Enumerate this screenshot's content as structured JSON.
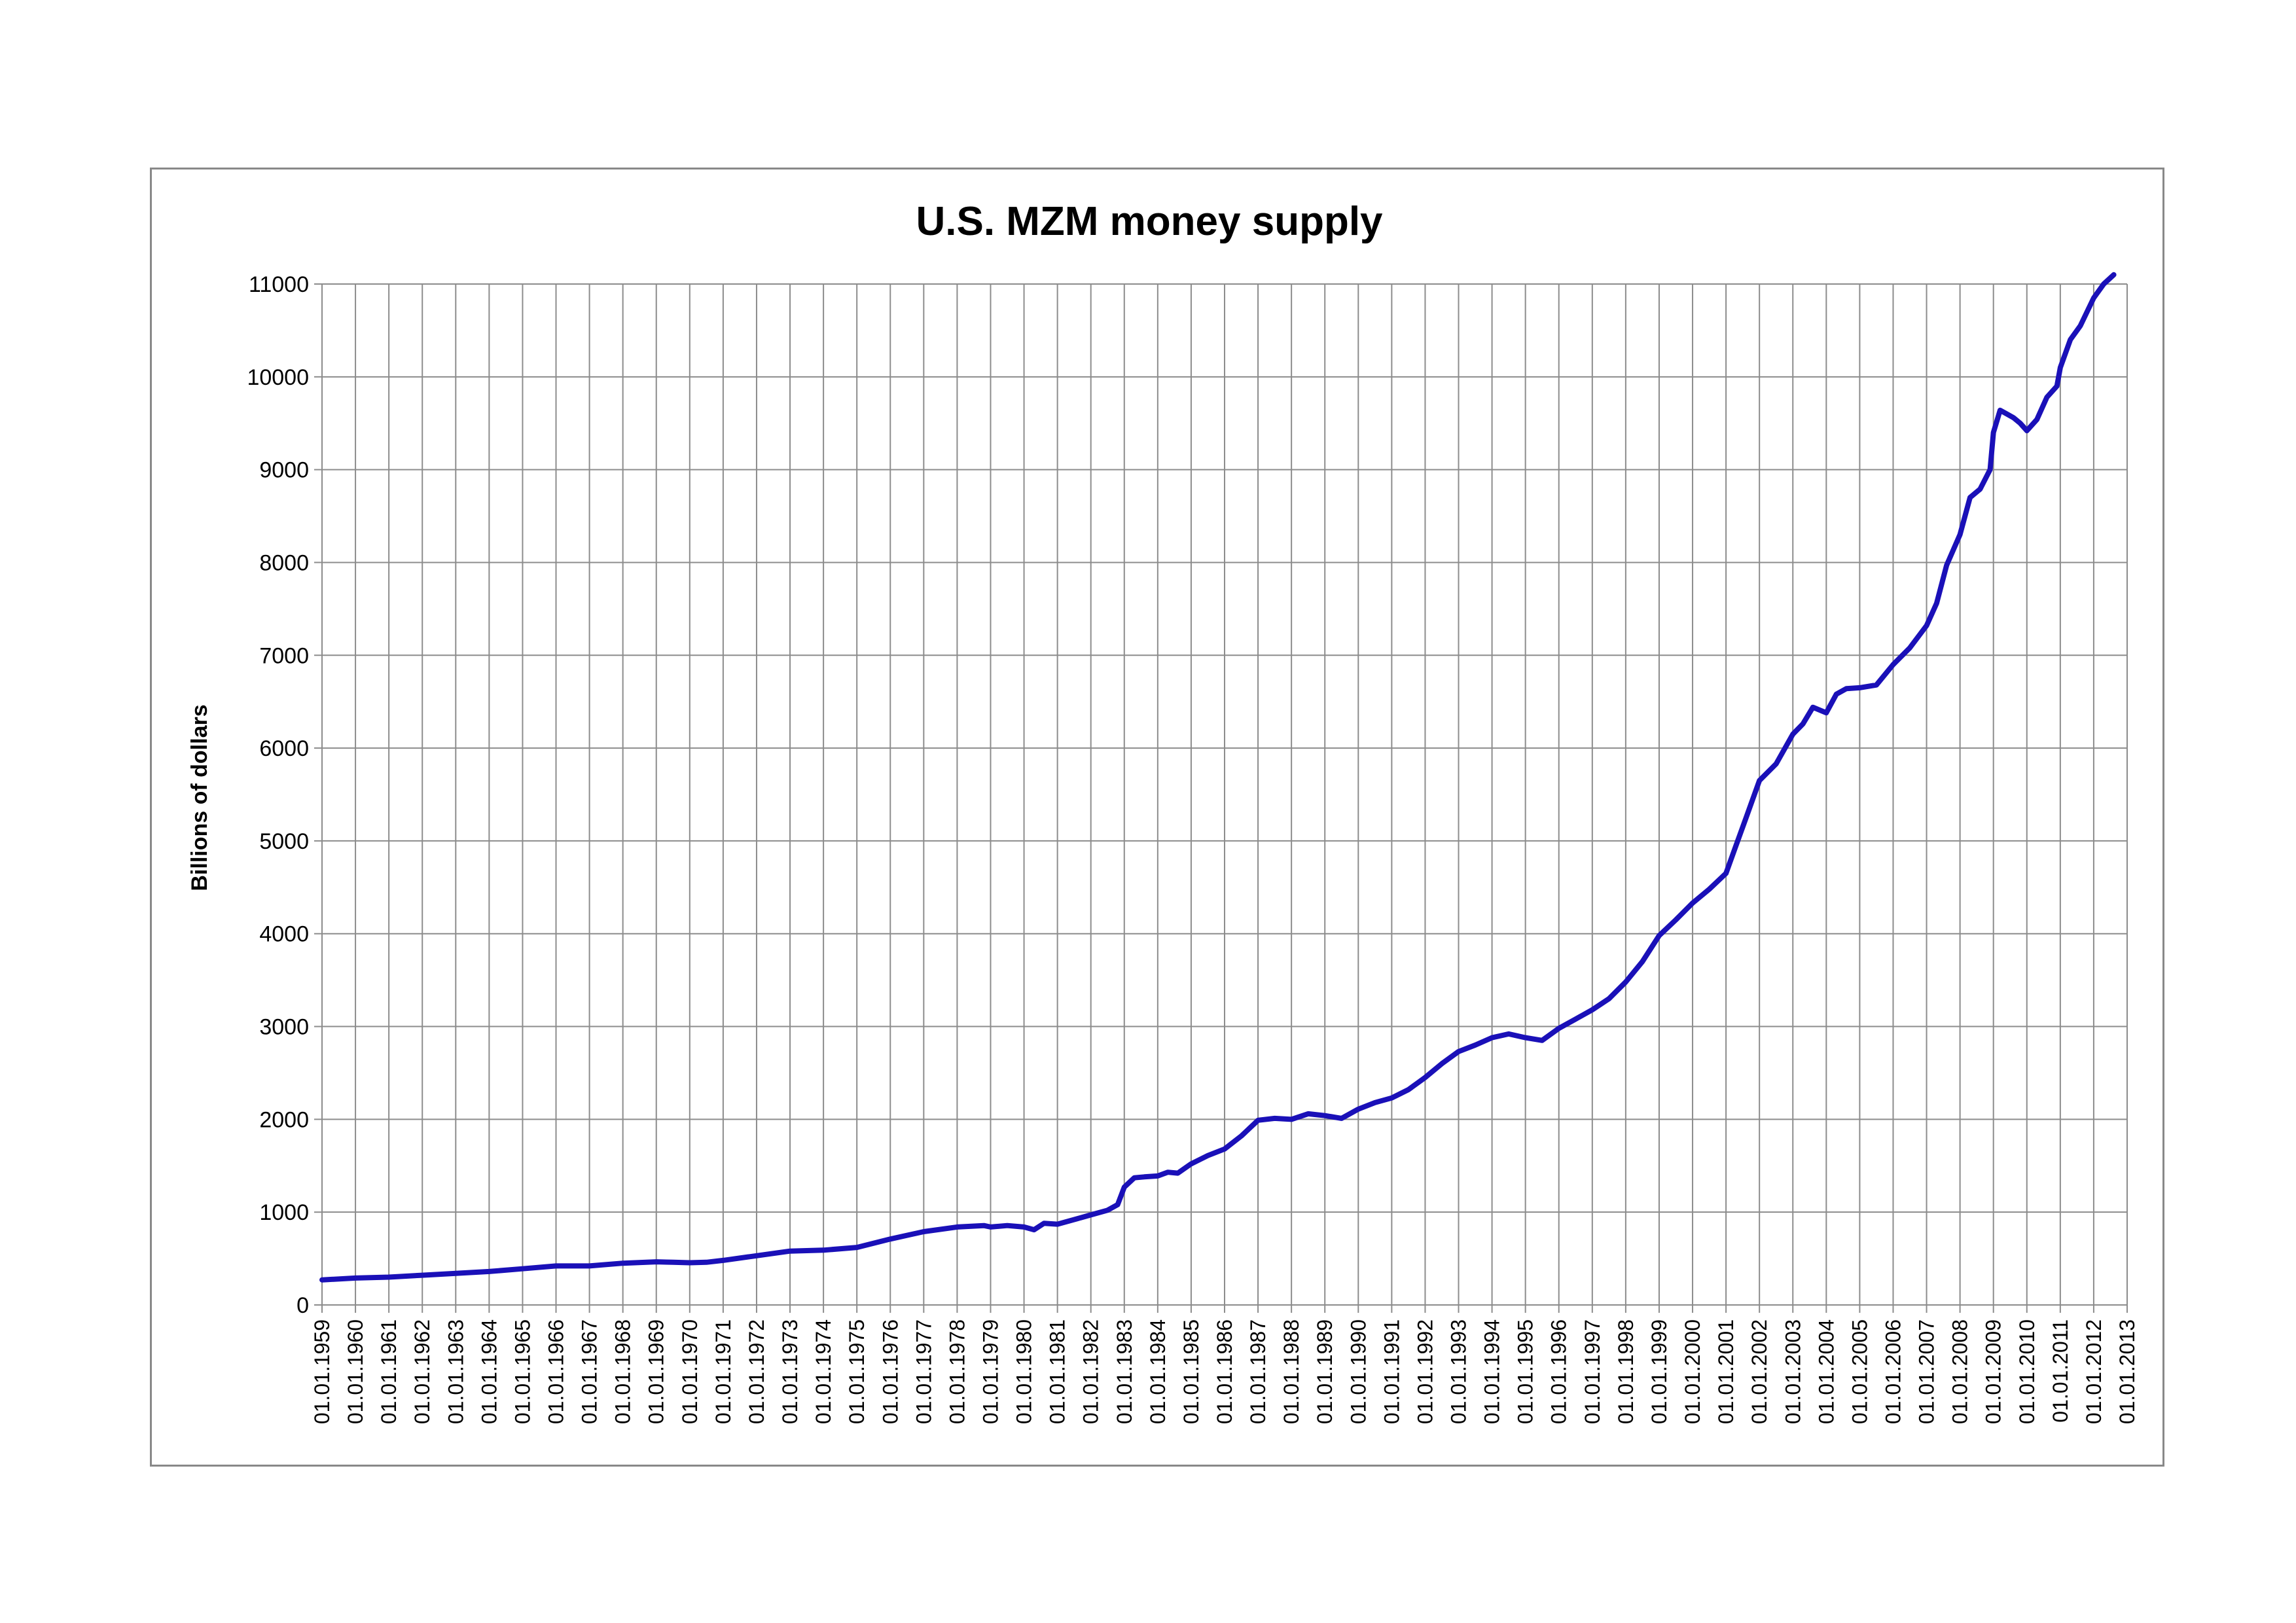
{
  "chart_data": {
    "type": "line",
    "title": "U.S. MZM money supply",
    "xlabel": "",
    "ylabel": "Billions of dollars",
    "ylim": [
      0,
      11000
    ],
    "y_ticks": [
      0,
      1000,
      2000,
      3000,
      4000,
      5000,
      6000,
      7000,
      8000,
      9000,
      10000,
      11000
    ],
    "x_tick_labels": [
      "01.01.1959",
      "01.01.1960",
      "01.01.1961",
      "01.01.1962",
      "01.01.1963",
      "01.01.1964",
      "01.01.1965",
      "01.01.1966",
      "01.01.1967",
      "01.01.1968",
      "01.01.1969",
      "01.01.1970",
      "01.01.1971",
      "01.01.1972",
      "01.01.1973",
      "01.01.1974",
      "01.01.1975",
      "01.01.1976",
      "01.01.1977",
      "01.01.1978",
      "01.01.1979",
      "01.01.1980",
      "01.01.1981",
      "01.01.1982",
      "01.01.1983",
      "01.01.1984",
      "01.01.1985",
      "01.01.1986",
      "01.01.1987",
      "01.01.1988",
      "01.01.1989",
      "01.01.1990",
      "01.01.1991",
      "01.01.1992",
      "01.01.1993",
      "01.01.1994",
      "01.01.1995",
      "01.01.1996",
      "01.01.1997",
      "01.01.1998",
      "01.01.1999",
      "01.01.2000",
      "01.01.2001",
      "01.01.2002",
      "01.01.2003",
      "01.01.2004",
      "01.01.2005",
      "01.01.2006",
      "01.01.2007",
      "01.01.2008",
      "01.01.2009",
      "01.01.2010",
      "01.01.2011",
      "01.01.2012",
      "01.01.2013"
    ],
    "xlim": [
      1959.0,
      2013.0
    ],
    "grid": true,
    "legend": "none",
    "line_color": "#1a10b8",
    "series": [
      {
        "x": [
          1959.0,
          1960.0,
          1961.0,
          1962.0,
          1963.0,
          1964.0,
          1965.0,
          1966.0,
          1967.0,
          1968.0,
          1969.0,
          1969.5,
          1970.0,
          1970.5,
          1971.0,
          1972.0,
          1973.0,
          1974.0,
          1975.0,
          1976.0,
          1977.0,
          1978.0,
          1978.8,
          1979.0,
          1979.5,
          1980.0,
          1980.3,
          1980.6,
          1981.0,
          1981.3,
          1981.6,
          1982.0,
          1982.5,
          1982.8,
          1983.0,
          1983.3,
          1983.6,
          1984.0,
          1984.3,
          1984.6,
          1985.0,
          1985.5,
          1986.0,
          1986.5,
          1987.0,
          1987.5,
          1988.0,
          1988.5,
          1989.0,
          1989.5,
          1990.0,
          1990.5,
          1991.0,
          1991.5,
          1992.0,
          1992.5,
          1993.0,
          1993.5,
          1994.0,
          1994.5,
          1995.0,
          1995.5,
          1996.0,
          1996.5,
          1997.0,
          1997.5,
          1998.0,
          1998.5,
          1999.0,
          1999.5,
          2000.0,
          2000.5,
          2001.0,
          2001.3,
          2001.6,
          2002.0,
          2002.5,
          2003.0,
          2003.3,
          2003.6,
          2004.0,
          2004.3,
          2004.6,
          2005.0,
          2005.5,
          2006.0,
          2006.5,
          2007.0,
          2007.3,
          2007.6,
          2008.0,
          2008.3,
          2008.6,
          2008.9,
          2009.0,
          2009.2,
          2009.4,
          2009.6,
          2009.8,
          2010.0,
          2010.3,
          2010.6,
          2010.9,
          2011.0,
          2011.3,
          2011.6,
          2012.0,
          2012.3,
          2012.6
        ],
        "values": [
          270,
          290,
          300,
          320,
          340,
          360,
          390,
          420,
          420,
          450,
          465,
          460,
          455,
          460,
          480,
          530,
          580,
          590,
          620,
          710,
          790,
          840,
          855,
          840,
          855,
          840,
          810,
          880,
          870,
          900,
          930,
          970,
          1020,
          1080,
          1270,
          1370,
          1380,
          1390,
          1430,
          1420,
          1520,
          1610,
          1680,
          1820,
          1990,
          2010,
          2000,
          2060,
          2040,
          2010,
          2110,
          2180,
          2230,
          2320,
          2450,
          2600,
          2730,
          2800,
          2880,
          2920,
          2880,
          2850,
          2980,
          3080,
          3180,
          3300,
          3480,
          3700,
          3980,
          4150,
          4330,
          4480,
          4650,
          4950,
          5250,
          5650,
          5830,
          6150,
          6260,
          6440,
          6380,
          6580,
          6640,
          6650,
          6680,
          6900,
          7080,
          7320,
          7560,
          7970,
          8300,
          8700,
          8790,
          9000,
          9400,
          9640,
          9600,
          9560,
          9500,
          9420,
          9540,
          9780,
          9900,
          10100,
          10400,
          10550,
          10850,
          11000,
          11100
        ]
      }
    ]
  }
}
